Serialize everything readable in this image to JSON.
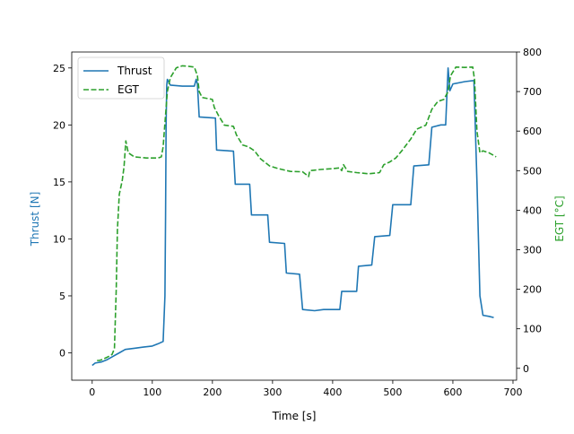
{
  "chart_data": {
    "type": "line",
    "xlabel": "Time [s]",
    "ylabel_left": "Thrust [N]",
    "ylabel_right": "EGT [°C]",
    "xlim": [
      -34,
      706
    ],
    "ylim_left": [
      -2.4,
      26.4
    ],
    "ylim_right": [
      -30,
      800
    ],
    "x_ticks": [
      0,
      100,
      200,
      300,
      400,
      500,
      600,
      700
    ],
    "y_left_ticks": [
      0,
      5,
      10,
      15,
      20,
      25
    ],
    "y_right_ticks": [
      0,
      100,
      200,
      300,
      400,
      500,
      600,
      700,
      800
    ],
    "legend_position": "top-left",
    "grid": false,
    "colors": {
      "thrust": "#1f77b4",
      "egt": "#2ca02c",
      "axis": "#000000"
    },
    "series": [
      {
        "name": "Thrust",
        "axis": "left",
        "style": "solid",
        "points": [
          [
            0,
            -1.1
          ],
          [
            5,
            -0.9
          ],
          [
            15,
            -0.8
          ],
          [
            25,
            -0.6
          ],
          [
            35,
            -0.3
          ],
          [
            45,
            0.0
          ],
          [
            55,
            0.3
          ],
          [
            70,
            0.4
          ],
          [
            85,
            0.5
          ],
          [
            100,
            0.6
          ],
          [
            110,
            0.8
          ],
          [
            118,
            1.0
          ],
          [
            121,
            5.0
          ],
          [
            122,
            12.0
          ],
          [
            123,
            20.0
          ],
          [
            124,
            23.5
          ],
          [
            125,
            24.0
          ],
          [
            130,
            23.5
          ],
          [
            150,
            23.4
          ],
          [
            170,
            23.4
          ],
          [
            173,
            24.0
          ],
          [
            175,
            23.6
          ],
          [
            178,
            20.7
          ],
          [
            205,
            20.6
          ],
          [
            207,
            17.8
          ],
          [
            235,
            17.7
          ],
          [
            238,
            14.8
          ],
          [
            262,
            14.8
          ],
          [
            265,
            12.1
          ],
          [
            292,
            12.1
          ],
          [
            295,
            9.7
          ],
          [
            320,
            9.6
          ],
          [
            323,
            7.0
          ],
          [
            345,
            6.9
          ],
          [
            350,
            3.8
          ],
          [
            370,
            3.7
          ],
          [
            385,
            3.8
          ],
          [
            400,
            3.8
          ],
          [
            412,
            3.8
          ],
          [
            415,
            5.4
          ],
          [
            440,
            5.4
          ],
          [
            443,
            7.6
          ],
          [
            465,
            7.7
          ],
          [
            470,
            10.2
          ],
          [
            495,
            10.3
          ],
          [
            500,
            13.0
          ],
          [
            530,
            13.0
          ],
          [
            535,
            16.4
          ],
          [
            560,
            16.5
          ],
          [
            565,
            19.8
          ],
          [
            580,
            20.0
          ],
          [
            588,
            20.0
          ],
          [
            592,
            25.0
          ],
          [
            595,
            23.0
          ],
          [
            600,
            23.6
          ],
          [
            620,
            23.8
          ],
          [
            635,
            23.9
          ],
          [
            640,
            15.0
          ],
          [
            645,
            5.0
          ],
          [
            650,
            3.3
          ],
          [
            660,
            3.2
          ],
          [
            668,
            3.1
          ]
        ]
      },
      {
        "name": "EGT",
        "axis": "right",
        "style": "dashed",
        "points": [
          [
            8,
            20
          ],
          [
            12,
            20
          ],
          [
            16,
            22
          ],
          [
            25,
            28
          ],
          [
            33,
            35
          ],
          [
            37,
            50
          ],
          [
            40,
            200
          ],
          [
            42,
            350
          ],
          [
            45,
            440
          ],
          [
            50,
            475
          ],
          [
            53,
            510
          ],
          [
            56,
            575
          ],
          [
            60,
            545
          ],
          [
            70,
            535
          ],
          [
            90,
            532
          ],
          [
            110,
            532
          ],
          [
            115,
            535
          ],
          [
            118,
            560
          ],
          [
            120,
            600
          ],
          [
            125,
            700
          ],
          [
            130,
            735
          ],
          [
            140,
            760
          ],
          [
            150,
            765
          ],
          [
            160,
            764
          ],
          [
            170,
            762
          ],
          [
            175,
            740
          ],
          [
            178,
            700
          ],
          [
            183,
            685
          ],
          [
            200,
            680
          ],
          [
            203,
            660
          ],
          [
            210,
            640
          ],
          [
            220,
            615
          ],
          [
            235,
            612
          ],
          [
            240,
            590
          ],
          [
            250,
            565
          ],
          [
            260,
            560
          ],
          [
            270,
            550
          ],
          [
            280,
            530
          ],
          [
            295,
            512
          ],
          [
            310,
            505
          ],
          [
            330,
            498
          ],
          [
            350,
            497
          ],
          [
            360,
            485
          ],
          [
            362,
            500
          ],
          [
            380,
            503
          ],
          [
            400,
            505
          ],
          [
            412,
            507
          ],
          [
            415,
            500
          ],
          [
            418,
            515
          ],
          [
            425,
            498
          ],
          [
            440,
            495
          ],
          [
            460,
            492
          ],
          [
            478,
            495
          ],
          [
            485,
            515
          ],
          [
            495,
            522
          ],
          [
            505,
            532
          ],
          [
            515,
            550
          ],
          [
            530,
            580
          ],
          [
            540,
            605
          ],
          [
            555,
            615
          ],
          [
            565,
            655
          ],
          [
            575,
            675
          ],
          [
            585,
            680
          ],
          [
            592,
            700
          ],
          [
            596,
            740
          ],
          [
            605,
            762
          ],
          [
            620,
            761
          ],
          [
            633,
            762
          ],
          [
            636,
            730
          ],
          [
            640,
            600
          ],
          [
            645,
            545
          ],
          [
            650,
            550
          ],
          [
            660,
            545
          ],
          [
            672,
            535
          ]
        ]
      }
    ]
  }
}
